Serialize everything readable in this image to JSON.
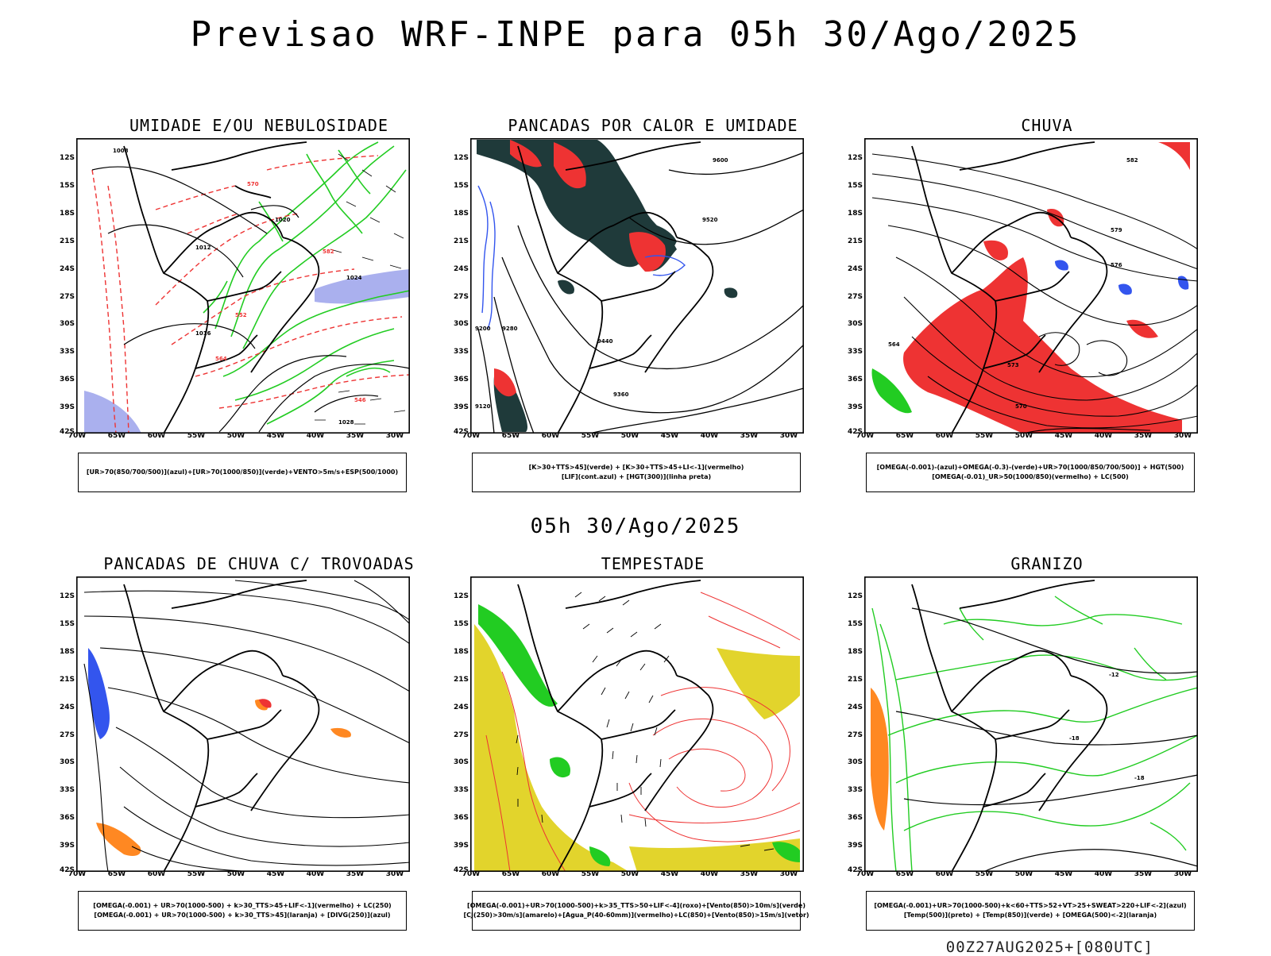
{
  "header": {
    "title": "Previsao WRF-INPE  para 05h 30/Ago/2025"
  },
  "mid_label": "05h 30/Ago/2025",
  "footer": "00Z27AUG2025+[080UTC]",
  "axes": {
    "lat_labels": [
      "12S",
      "15S",
      "18S",
      "21S",
      "24S",
      "27S",
      "30S",
      "33S",
      "36S",
      "39S",
      "42S"
    ],
    "lon_labels": [
      "70W",
      "65W",
      "60W",
      "55W",
      "50W",
      "45W",
      "40W",
      "35W",
      "30W"
    ]
  },
  "colors": {
    "green": "#22cc22",
    "red": "#ee3333",
    "blue": "#3355ee",
    "lavender": "#aab0ee",
    "darkteal": "#1f3a3a",
    "yellow": "#e2d42c",
    "orange": "#ff8822",
    "black": "#000000"
  },
  "panels": [
    {
      "id": "umidade",
      "title": "UMIDADE E/OU NEBULOSIDADE",
      "legend": [
        "[UR>70(850/700/500)](azul)+[UR>70(1000/850)](verde)+VENTO>5m/s+ESP(500/1000)"
      ],
      "contour_labels": [
        "1008",
        "1012",
        "1016",
        "1020",
        "1024",
        "1028",
        "552",
        "564",
        "570",
        "546",
        "582"
      ]
    },
    {
      "id": "pancadas_calor",
      "title": "PANCADAS POR CALOR E UMIDADE",
      "legend": [
        "[K>30+TTS>45](verde) + [K>30+TTS>45+LI<-1](vermelho)",
        "[LIF](cont.azul) + [HGT(300)](linha preta)"
      ],
      "contour_labels": [
        "9600",
        "9520",
        "9440",
        "9360",
        "9280",
        "9200",
        "9120"
      ]
    },
    {
      "id": "chuva",
      "title": "CHUVA",
      "legend": [
        "[OMEGA(-0.001)-(azul)+OMEGA(-0.3)-(verde)+UR>70(1000/850/700/500)] + HGT(500)",
        "[OMEGA(-0.01)_UR>50(1000/850)(vermelho) + LC(500)"
      ],
      "contour_labels": [
        "582",
        "579",
        "576",
        "573",
        "570",
        "564"
      ]
    },
    {
      "id": "trovoadas",
      "title": "PANCADAS DE CHUVA C/ TROVOADAS",
      "legend": [
        "[OMEGA(-0.001) + UR>70(1000-500) + k>30_TTS>45+LIF<-1](vermelho) + LC(250)",
        "[OMEGA(-0.001) + UR>70(1000-500) + k>30_TTS>45](laranja) + [DIVG(250)](azul)"
      ],
      "contour_labels": []
    },
    {
      "id": "tempestade",
      "title": "TEMPESTADE",
      "legend": [
        "[OMEGA(-0.001)+UR>70(1000-500)+k>35_TTS>50+LIF<-4](roxo)+[Vento(850)>10m/s](verde)",
        "[CJ(250)>30m/s](amarelo)+[Agua_P(40-60mm)](vermelho)+LC(850)+[Vento(850)>15m/s](vetor)"
      ],
      "contour_labels": []
    },
    {
      "id": "granizo",
      "title": "GRANIZO",
      "legend": [
        "[OMEGA(-0.001)+UR>70(1000-500)+k<60+TTS>52+VT>25+SWEAT>220+LIF<-2](azul)",
        "[Temp(500)](preto) + [Temp(850)](verde) + [OMEGA(500)<-2](laranja)"
      ],
      "contour_labels": [
        "-12",
        "-18",
        "-18"
      ]
    }
  ]
}
